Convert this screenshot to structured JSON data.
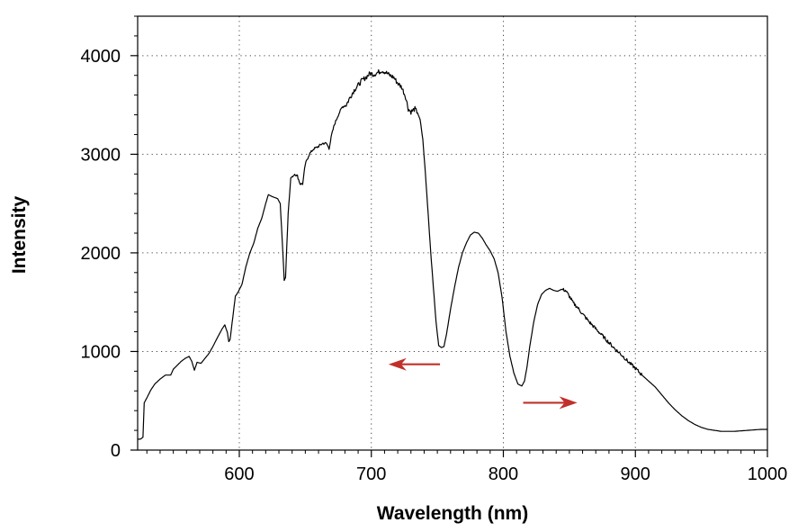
{
  "chart_data": {
    "type": "line",
    "title": "",
    "xlabel": "Wavelength (nm)",
    "ylabel": "Intensity",
    "xlim": [
      523,
      1000
    ],
    "ylim": [
      0,
      4400
    ],
    "x_ticks": [
      600,
      700,
      800,
      900,
      1000
    ],
    "x_tick_labels": [
      "600",
      "700",
      "800",
      "900",
      "1000"
    ],
    "y_ticks": [
      0,
      1000,
      2000,
      3000,
      4000
    ],
    "y_tick_labels": [
      "0",
      "1000",
      "2000",
      "3000",
      "4000"
    ],
    "grid": "dotted",
    "series": [
      {
        "color": "#000000",
        "points": [
          [
            523,
            110
          ],
          [
            525,
            110
          ],
          [
            527,
            130
          ],
          [
            528,
            480
          ],
          [
            530,
            530
          ],
          [
            533,
            610
          ],
          [
            536,
            670
          ],
          [
            540,
            720
          ],
          [
            544,
            760
          ],
          [
            548,
            760
          ],
          [
            550,
            820
          ],
          [
            553,
            860
          ],
          [
            556,
            900
          ],
          [
            559,
            930
          ],
          [
            562,
            950
          ],
          [
            564,
            900
          ],
          [
            566,
            810
          ],
          [
            568,
            890
          ],
          [
            571,
            880
          ],
          [
            574,
            930
          ],
          [
            577,
            980
          ],
          [
            580,
            1050
          ],
          [
            583,
            1130
          ],
          [
            587,
            1230
          ],
          [
            589,
            1270
          ],
          [
            591,
            1190
          ],
          [
            592,
            1100
          ],
          [
            593,
            1120
          ],
          [
            595,
            1340
          ],
          [
            597,
            1560
          ],
          [
            599,
            1600
          ],
          [
            602,
            1680
          ],
          [
            605,
            1860
          ],
          [
            608,
            2000
          ],
          [
            611,
            2100
          ],
          [
            614,
            2250
          ],
          [
            617,
            2350
          ],
          [
            620,
            2500
          ],
          [
            622,
            2590
          ],
          [
            625,
            2570
          ],
          [
            629,
            2550
          ],
          [
            631,
            2500
          ],
          [
            633,
            2000
          ],
          [
            634,
            1720
          ],
          [
            635,
            1750
          ],
          [
            637,
            2400
          ],
          [
            639,
            2760
          ],
          [
            642,
            2800
          ],
          [
            644,
            2780
          ],
          [
            646,
            2700
          ],
          [
            648,
            2700
          ],
          [
            650,
            2900
          ],
          [
            653,
            3000
          ],
          [
            656,
            3050
          ],
          [
            660,
            3080
          ],
          [
            663,
            3110
          ],
          [
            666,
            3110
          ],
          [
            668,
            3060
          ],
          [
            670,
            3200
          ],
          [
            672,
            3300
          ],
          [
            675,
            3400
          ],
          [
            678,
            3480
          ],
          [
            681,
            3500
          ],
          [
            684,
            3580
          ],
          [
            687,
            3650
          ],
          [
            690,
            3700
          ],
          [
            693,
            3750
          ],
          [
            696,
            3780
          ],
          [
            699,
            3820
          ],
          [
            702,
            3810
          ],
          [
            705,
            3830
          ],
          [
            708,
            3850
          ],
          [
            711,
            3830
          ],
          [
            714,
            3800
          ],
          [
            717,
            3780
          ],
          [
            720,
            3720
          ],
          [
            723,
            3680
          ],
          [
            726,
            3580
          ],
          [
            728,
            3460
          ],
          [
            730,
            3430
          ],
          [
            733,
            3460
          ],
          [
            735,
            3420
          ],
          [
            737,
            3350
          ],
          [
            739,
            3150
          ],
          [
            741,
            2800
          ],
          [
            743,
            2400
          ],
          [
            745,
            2000
          ],
          [
            747,
            1650
          ],
          [
            749,
            1300
          ],
          [
            751,
            1060
          ],
          [
            753,
            1040
          ],
          [
            755,
            1050
          ],
          [
            757,
            1180
          ],
          [
            760,
            1430
          ],
          [
            763,
            1650
          ],
          [
            766,
            1850
          ],
          [
            769,
            2000
          ],
          [
            772,
            2100
          ],
          [
            775,
            2180
          ],
          [
            778,
            2210
          ],
          [
            781,
            2200
          ],
          [
            784,
            2150
          ],
          [
            787,
            2080
          ],
          [
            790,
            2020
          ],
          [
            793,
            1940
          ],
          [
            796,
            1800
          ],
          [
            799,
            1550
          ],
          [
            802,
            1200
          ],
          [
            805,
            950
          ],
          [
            808,
            780
          ],
          [
            811,
            670
          ],
          [
            814,
            650
          ],
          [
            816,
            700
          ],
          [
            818,
            850
          ],
          [
            820,
            1050
          ],
          [
            823,
            1300
          ],
          [
            826,
            1480
          ],
          [
            829,
            1580
          ],
          [
            832,
            1620
          ],
          [
            835,
            1640
          ],
          [
            838,
            1620
          ],
          [
            841,
            1610
          ],
          [
            844,
            1630
          ],
          [
            847,
            1620
          ],
          [
            850,
            1560
          ],
          [
            853,
            1490
          ],
          [
            856,
            1450
          ],
          [
            860,
            1380
          ],
          [
            865,
            1300
          ],
          [
            870,
            1230
          ],
          [
            875,
            1160
          ],
          [
            880,
            1090
          ],
          [
            885,
            1020
          ],
          [
            890,
            960
          ],
          [
            895,
            890
          ],
          [
            900,
            830
          ],
          [
            905,
            760
          ],
          [
            910,
            700
          ],
          [
            915,
            640
          ],
          [
            920,
            560
          ],
          [
            925,
            480
          ],
          [
            930,
            410
          ],
          [
            935,
            350
          ],
          [
            940,
            300
          ],
          [
            945,
            260
          ],
          [
            950,
            230
          ],
          [
            955,
            210
          ],
          [
            960,
            200
          ],
          [
            965,
            190
          ],
          [
            970,
            190
          ],
          [
            975,
            190
          ],
          [
            980,
            195
          ],
          [
            985,
            200
          ],
          [
            990,
            205
          ],
          [
            995,
            210
          ],
          [
            1000,
            210
          ]
        ]
      }
    ],
    "annotations": [
      {
        "type": "arrow",
        "x_start": 752,
        "x_end": 713,
        "y": 870,
        "color": "#c0302a"
      },
      {
        "type": "arrow",
        "x_start": 815,
        "x_end": 856,
        "y": 480,
        "color": "#c0302a"
      }
    ]
  }
}
